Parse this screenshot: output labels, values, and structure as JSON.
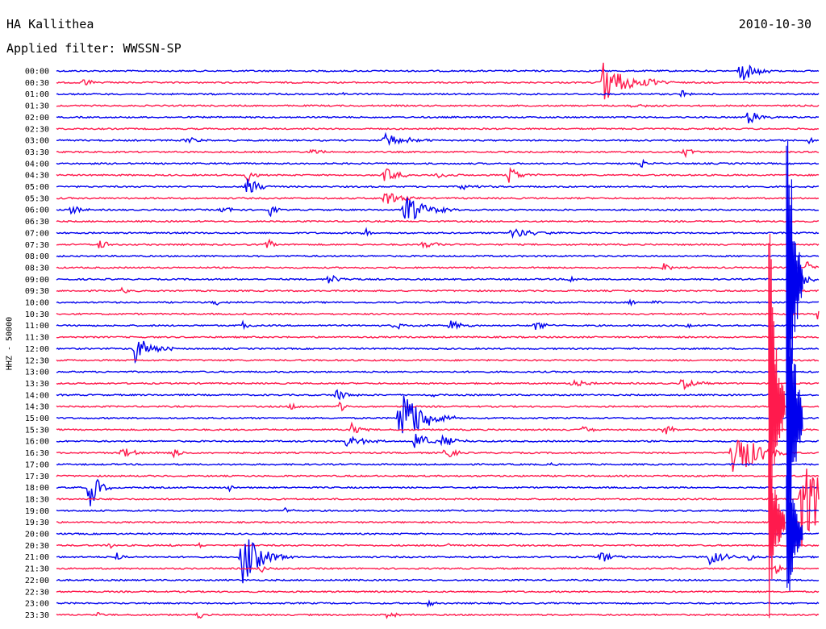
{
  "header": {
    "station": "HA Kallithea",
    "date": "2010-10-30",
    "filter_label": "Applied filter: WWSSN-SP"
  },
  "chart_data": {
    "type": "line",
    "title": "HA Kallithea",
    "subtitle": "Applied filter: WWSSN-SP",
    "date": "2010-10-30",
    "ylabel": "HHZ - 50000",
    "xlabel": "",
    "trace_interval_minutes": 30,
    "row_labels": [
      "00:00",
      "00:30",
      "01:00",
      "01:30",
      "02:00",
      "02:30",
      "03:00",
      "03:30",
      "04:00",
      "04:30",
      "05:00",
      "05:30",
      "06:00",
      "06:30",
      "07:00",
      "07:30",
      "08:00",
      "08:30",
      "09:00",
      "09:30",
      "10:00",
      "10:30",
      "11:00",
      "11:30",
      "12:00",
      "12:30",
      "13:00",
      "13:30",
      "14:00",
      "14:30",
      "15:00",
      "15:30",
      "16:00",
      "16:30",
      "17:00",
      "17:30",
      "18:00",
      "18:30",
      "19:00",
      "19:30",
      "20:00",
      "20:30",
      "21:00",
      "21:30",
      "22:00",
      "22:30",
      "23:00",
      "23:30"
    ],
    "colors": {
      "even_rows": "#0000ee",
      "odd_rows": "#ff1a4d"
    },
    "events": [
      {
        "row": 0,
        "minute": 25.5,
        "amp": 3,
        "dur": 0.4
      },
      {
        "row": 0,
        "minute": 26.9,
        "amp": 14,
        "dur": 1.6
      },
      {
        "row": 1,
        "minute": 1.1,
        "amp": 6,
        "dur": 1
      },
      {
        "row": 1,
        "minute": 21.5,
        "amp": 26,
        "dur": 2.8
      },
      {
        "row": 2,
        "minute": 11.3,
        "amp": 3,
        "dur": 0.4
      },
      {
        "row": 2,
        "minute": 24.6,
        "amp": 5,
        "dur": 0.5
      },
      {
        "row": 3,
        "minute": 22.6,
        "amp": 3,
        "dur": 1.5
      },
      {
        "row": 4,
        "minute": 27.2,
        "amp": 9,
        "dur": 1.3
      },
      {
        "row": 6,
        "minute": 5.1,
        "amp": 7,
        "dur": 0.9
      },
      {
        "row": 6,
        "minute": 12.9,
        "amp": 8,
        "dur": 2.5
      },
      {
        "row": 6,
        "minute": 29.6,
        "amp": 6,
        "dur": 0.4
      },
      {
        "row": 7,
        "minute": 10.0,
        "amp": 4,
        "dur": 1.3
      },
      {
        "row": 7,
        "minute": 24.7,
        "amp": 6,
        "dur": 0.8
      },
      {
        "row": 8,
        "minute": 23.0,
        "amp": 8,
        "dur": 0.5
      },
      {
        "row": 9,
        "minute": 7.5,
        "amp": 9,
        "dur": 1
      },
      {
        "row": 9,
        "minute": 12.9,
        "amp": 11,
        "dur": 1.3
      },
      {
        "row": 9,
        "minute": 15.0,
        "amp": 5,
        "dur": 1
      },
      {
        "row": 9,
        "minute": 17.8,
        "amp": 12,
        "dur": 1.2
      },
      {
        "row": 10,
        "minute": 7.5,
        "amp": 14,
        "dur": 1.2
      },
      {
        "row": 10,
        "minute": 15.9,
        "amp": 4,
        "dur": 1.5
      },
      {
        "row": 11,
        "minute": 12.9,
        "amp": 10,
        "dur": 1.6
      },
      {
        "row": 12,
        "minute": 0.6,
        "amp": 6,
        "dur": 1
      },
      {
        "row": 12,
        "minute": 6.5,
        "amp": 5,
        "dur": 1
      },
      {
        "row": 12,
        "minute": 8.4,
        "amp": 8,
        "dur": 0.6
      },
      {
        "row": 12,
        "minute": 13.7,
        "amp": 18,
        "dur": 2.2
      },
      {
        "row": 14,
        "minute": 12.1,
        "amp": 12,
        "dur": 0.4
      },
      {
        "row": 14,
        "minute": 17.9,
        "amp": 7,
        "dur": 2.2
      },
      {
        "row": 15,
        "minute": 1.7,
        "amp": 7,
        "dur": 0.8
      },
      {
        "row": 15,
        "minute": 8.3,
        "amp": 8,
        "dur": 0.6
      },
      {
        "row": 15,
        "minute": 14.4,
        "amp": 4,
        "dur": 2
      },
      {
        "row": 17,
        "minute": 23.9,
        "amp": 8,
        "dur": 0.5
      },
      {
        "row": 17,
        "minute": 29.5,
        "amp": 8,
        "dur": 1
      },
      {
        "row": 18,
        "minute": 10.7,
        "amp": 6,
        "dur": 1.3
      },
      {
        "row": 18,
        "minute": 20.2,
        "amp": 7,
        "dur": 0.4
      },
      {
        "row": 18,
        "minute": 29.0,
        "amp": 24,
        "dur": 1
      },
      {
        "row": 19,
        "minute": 2.6,
        "amp": 4,
        "dur": 0.8
      },
      {
        "row": 20,
        "minute": 6.2,
        "amp": 7,
        "dur": 0.5
      },
      {
        "row": 20,
        "minute": 22.5,
        "amp": 6,
        "dur": 0.6
      },
      {
        "row": 20,
        "minute": 23.5,
        "amp": 4,
        "dur": 0.6
      },
      {
        "row": 21,
        "minute": 29.9,
        "amp": 8,
        "dur": 0.4
      },
      {
        "row": 22,
        "minute": 7.3,
        "amp": 6,
        "dur": 0.8
      },
      {
        "row": 22,
        "minute": 13.3,
        "amp": 4,
        "dur": 1.5
      },
      {
        "row": 22,
        "minute": 15.5,
        "amp": 7,
        "dur": 1
      },
      {
        "row": 22,
        "minute": 18.8,
        "amp": 8,
        "dur": 1
      },
      {
        "row": 22,
        "minute": 24.8,
        "amp": 5,
        "dur": 0.6
      },
      {
        "row": 24,
        "minute": 3.1,
        "amp": 20,
        "dur": 1.6
      },
      {
        "row": 27,
        "minute": 20.3,
        "amp": 8,
        "dur": 1
      },
      {
        "row": 27,
        "minute": 24.6,
        "amp": 8,
        "dur": 1.2
      },
      {
        "row": 28,
        "minute": 11.0,
        "amp": 9,
        "dur": 1
      },
      {
        "row": 28,
        "minute": 14.8,
        "amp": 5,
        "dur": 0.3
      },
      {
        "row": 29,
        "minute": 9.2,
        "amp": 5,
        "dur": 0.8
      },
      {
        "row": 29,
        "minute": 11.1,
        "amp": 9,
        "dur": 0.6
      },
      {
        "row": 30,
        "minute": 13.5,
        "amp": 44,
        "dur": 2.2
      },
      {
        "row": 31,
        "minute": 11.6,
        "amp": 9,
        "dur": 0.8
      },
      {
        "row": 31,
        "minute": 20.7,
        "amp": 5,
        "dur": 1
      },
      {
        "row": 31,
        "minute": 23.9,
        "amp": 8,
        "dur": 0.8
      },
      {
        "row": 32,
        "minute": 11.4,
        "amp": 7,
        "dur": 2
      },
      {
        "row": 32,
        "minute": 14.1,
        "amp": 13,
        "dur": 1.3
      },
      {
        "row": 32,
        "minute": 15.2,
        "amp": 10,
        "dur": 1.2
      },
      {
        "row": 33,
        "minute": 2.5,
        "amp": 7,
        "dur": 1.6
      },
      {
        "row": 33,
        "minute": 4.6,
        "amp": 6,
        "dur": 1
      },
      {
        "row": 33,
        "minute": 15.3,
        "amp": 12,
        "dur": 0.8
      },
      {
        "row": 33,
        "minute": 26.6,
        "amp": 40,
        "dur": 2.2
      },
      {
        "row": 34,
        "minute": 19.5,
        "amp": 4,
        "dur": 0.4
      },
      {
        "row": 34,
        "minute": 27.6,
        "amp": 5,
        "dur": 0.3
      },
      {
        "row": 36,
        "minute": 1.3,
        "amp": 28,
        "dur": 0.9
      },
      {
        "row": 36,
        "minute": 6.8,
        "amp": 5,
        "dur": 0.4
      },
      {
        "row": 37,
        "minute": 29.3,
        "amp": 62,
        "dur": 2.4
      },
      {
        "row": 38,
        "minute": 9.0,
        "amp": 5,
        "dur": 0.5
      },
      {
        "row": 41,
        "minute": 2.1,
        "amp": 5,
        "dur": 0.4
      },
      {
        "row": 41,
        "minute": 4.4,
        "amp": 3,
        "dur": 0.4
      },
      {
        "row": 41,
        "minute": 5.6,
        "amp": 4,
        "dur": 0.4
      },
      {
        "row": 41,
        "minute": 15.4,
        "amp": 4,
        "dur": 0.4
      },
      {
        "row": 42,
        "minute": 2.4,
        "amp": 6,
        "dur": 0.6
      },
      {
        "row": 42,
        "minute": 7.3,
        "amp": 34,
        "dur": 2
      },
      {
        "row": 42,
        "minute": 21.4,
        "amp": 9,
        "dur": 1
      },
      {
        "row": 42,
        "minute": 25.7,
        "amp": 11,
        "dur": 1.5
      },
      {
        "row": 42,
        "minute": 27.2,
        "amp": 6,
        "dur": 0.6
      },
      {
        "row": 43,
        "minute": 8.0,
        "amp": 6,
        "dur": 0.5
      },
      {
        "row": 43,
        "minute": 28.3,
        "amp": 8,
        "dur": 0.4
      },
      {
        "row": 46,
        "minute": 14.6,
        "amp": 5,
        "dur": 0.5
      },
      {
        "row": 47,
        "minute": 1.6,
        "amp": 4,
        "dur": 0.5
      },
      {
        "row": 47,
        "minute": 5.6,
        "amp": 6,
        "dur": 0.4
      },
      {
        "row": 47,
        "minute": 12.9,
        "amp": 4,
        "dur": 1.3
      }
    ],
    "spikes": [
      {
        "row": 18,
        "minute": 28.7,
        "amp": 280
      },
      {
        "row": 29,
        "minute": 28.0,
        "amp": 280
      },
      {
        "row": 30,
        "minute": 28.7,
        "amp": 280
      },
      {
        "row": 39,
        "minute": 28.0,
        "amp": 140
      },
      {
        "row": 40,
        "minute": 28.7,
        "amp": 140
      }
    ]
  }
}
